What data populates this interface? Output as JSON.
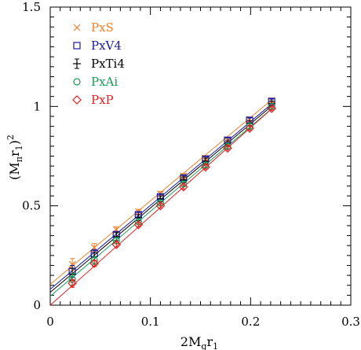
{
  "chart_data": {
    "type": "scatter",
    "xlabel": "2M_q r_1",
    "ylabel": "(M_π r_1)^2",
    "xlim": [
      0,
      0.3
    ],
    "ylim": [
      0,
      1.5
    ],
    "x_ticks": [
      0,
      0.1,
      0.2,
      0.3
    ],
    "y_ticks": [
      0,
      0.5,
      1,
      1.5
    ],
    "x_tick_labels": [
      "0",
      "0.1",
      "0.2",
      "0.3"
    ],
    "y_tick_labels": [
      "0",
      "0.5",
      "1",
      "1.5"
    ],
    "grid": false,
    "legend_position": "top-left",
    "x": [
      0.022,
      0.044,
      0.066,
      0.088,
      0.11,
      0.133,
      0.155,
      0.177,
      0.199,
      0.221
    ],
    "series": [
      {
        "name": "PxS",
        "marker": "cross",
        "color": "#f08030",
        "values": [
          0.205,
          0.29,
          0.38,
          0.47,
          0.56,
          0.65,
          0.74,
          0.83,
          0.935,
          1.03
        ],
        "errors": [
          0.03,
          0.02,
          0.015,
          0.012,
          0.012,
          0.012,
          0.012,
          0.012,
          0.012,
          0.012
        ],
        "fit_intercept": 0.105,
        "fit_slope": 4.2
      },
      {
        "name": "PxV4",
        "marker": "square",
        "color": "#1a1a9a",
        "values": [
          0.17,
          0.26,
          0.355,
          0.455,
          0.545,
          0.64,
          0.735,
          0.83,
          0.93,
          1.025
        ],
        "errors": [
          0.03,
          0.02,
          0.015,
          0.012,
          0.012,
          0.012,
          0.012,
          0.012,
          0.012,
          0.012
        ],
        "fit_intercept": 0.08,
        "fit_slope": 4.22
      },
      {
        "name": "PxTi4",
        "marker": "plus-error",
        "color": "#000000",
        "values": [
          0.155,
          0.245,
          0.345,
          0.44,
          0.535,
          0.63,
          0.725,
          0.815,
          0.915,
          1.015
        ],
        "errors": [
          0.03,
          0.02,
          0.02,
          0.015,
          0.015,
          0.015,
          0.015,
          0.012,
          0.012,
          0.012
        ],
        "fit_intercept": 0.065,
        "fit_slope": 4.24
      },
      {
        "name": "PxAi",
        "marker": "circle",
        "color": "#1f9a58",
        "values": [
          0.13,
          0.225,
          0.325,
          0.42,
          0.515,
          0.61,
          0.705,
          0.8,
          0.9,
          1.0
        ],
        "errors": [
          0.03,
          0.02,
          0.015,
          0.012,
          0.012,
          0.012,
          0.012,
          0.012,
          0.012,
          0.012
        ],
        "fit_intercept": 0.045,
        "fit_slope": 4.27
      },
      {
        "name": "PxP",
        "marker": "diamond",
        "color": "#e02020",
        "values": [
          0.11,
          0.21,
          0.305,
          0.405,
          0.5,
          0.595,
          0.695,
          0.79,
          0.89,
          0.99
        ],
        "errors": [
          0.02,
          0.015,
          0.012,
          0.01,
          0.01,
          0.01,
          0.01,
          0.01,
          0.01,
          0.01
        ],
        "fit_intercept": 0.0,
        "fit_slope": 4.47
      }
    ]
  }
}
